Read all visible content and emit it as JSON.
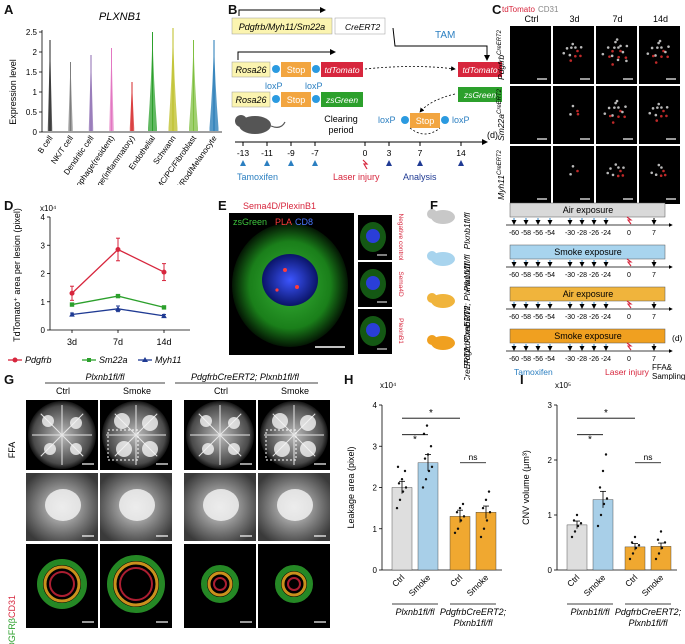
{
  "panels": {
    "A": {
      "letter": "A",
      "gene": "PLXNB1",
      "ylabel": "Expression level",
      "yticks": [
        "0",
        "0.5",
        "1",
        "1.5",
        "2",
        "2.5"
      ],
      "cell_types": [
        "B cell",
        "NK/T cell",
        "Dendritic cell",
        "Macrophage(resident)",
        "Macrophage(inflammatory)",
        "Endothelial",
        "Schwann",
        "SMC/PC/Fibroblast",
        "RPE/Rod/Melanocyte"
      ],
      "violin_colors": [
        "#222222",
        "#7d7d7d",
        "#8c6bb1",
        "#e377c2",
        "#d62728",
        "#2ca02c",
        "#bcbd22",
        "#7fbf3f",
        "#1f77b4"
      ]
    },
    "B": {
      "letter": "B",
      "promoters": "Pdgfrb/Myh11/Sm22a",
      "cre": "CreERT2",
      "tam": "TAM",
      "rosa1": "Rosa26",
      "rosa2": "Rosa26",
      "stop1": "Stop",
      "stop2": "Stop",
      "stop3": "Stop",
      "reporter1": "tdTomato",
      "reporter2": "zsGreen",
      "loxp_a": "loxP",
      "loxp_b": "loxP",
      "loxp_c": "loxP",
      "loxp_d": "loxP",
      "out_red": "tdTomato",
      "out_green": "zsGreen",
      "clearing": "Clearing",
      "period": "period",
      "timeline_ticks": [
        "-13",
        "-11",
        "-9",
        "-7",
        "0",
        "3",
        "7",
        "14"
      ],
      "unit": "(d)",
      "tamoxifen": "Tamoxifen",
      "laser": "Laser injury",
      "analysis": "Analysis"
    },
    "C": {
      "letter": "C",
      "label_red": "tdTomato",
      "label_white": "CD31",
      "cols": [
        "Ctrl",
        "3d",
        "7d",
        "14d"
      ],
      "rows": [
        "Pdgfrb",
        "Sm22a",
        "Myh11"
      ],
      "cre_suffix": "CreERT2"
    },
    "D": {
      "letter": "D",
      "ylabel": "TdTomato⁺ area per lesion (pixel)",
      "multiplier": "x10⁴",
      "legend_names": [
        "Pdgfrb",
        "Sm22a",
        "Myh11"
      ]
    },
    "E": {
      "letter": "E",
      "title": "Sema4D/PlexinB1",
      "zsgreen": "zsGreen",
      "pla": "PLA",
      "cd8": "CD8",
      "side_labels": [
        "Negative control",
        "Sema4D",
        "PlexinB1"
      ]
    },
    "F": {
      "letter": "F",
      "rows": [
        {
          "bar": "Air exposure",
          "genotype": "Plxnb1fl/fl"
        },
        {
          "bar": "Smoke exposure",
          "genotype": "Plxnb1fl/fl"
        },
        {
          "bar": "Air exposure",
          "genotype": "PdgfrbCreERT2; Plxnb1fl/fl"
        },
        {
          "bar": "Smoke exposure",
          "genotype": "PdgfrbCreERT2; Plxnb1fl/fl"
        }
      ],
      "ticks": [
        "-60",
        "-58",
        "-56",
        "-54",
        "-30",
        "-28",
        "-26",
        "-24",
        "0",
        "7"
      ],
      "unit": "(d)",
      "tamoxifen": "Tamoxifen",
      "laser": "Laser injury",
      "sampling": "FFA& Sampling"
    },
    "G": {
      "letter": "G",
      "group1": "Plxnb1fl/fl",
      "group2": "PdgfrbCreERT2; Plxnb1fl/fl",
      "cols": [
        "Ctrl",
        "Smoke",
        "Ctrl",
        "Smoke"
      ],
      "row_ffa": "FFA",
      "row_stain_green": "PDGFRβ",
      "row_stain_red": "CD31"
    },
    "H": {
      "letter": "H",
      "ylabel": "Leakage area (pixel)",
      "multiplier": "x10⁴",
      "yticks": [
        "0",
        "1",
        "2",
        "3",
        "4"
      ],
      "sig": [
        "*",
        "*",
        "ns"
      ],
      "xcats": [
        "Ctrl",
        "Smoke",
        "Ctrl",
        "Smoke"
      ],
      "group1": "Plxnb1fl/fl",
      "group2": "PdgfrbCreERT2; Plxnb1fl/fl"
    },
    "I": {
      "letter": "I",
      "ylabel": "CNV volume (μm³)",
      "multiplier": "x10⁵",
      "yticks": [
        "0",
        "1",
        "2",
        "3"
      ],
      "sig": [
        "*",
        "*",
        "ns"
      ],
      "xcats": [
        "Ctrl",
        "Smoke",
        "Ctrl",
        "Smoke"
      ],
      "group1": "Plxnb1fl/fl",
      "group2": "PdgfrbCreERT2; Plxnb1fl/fl"
    }
  },
  "chart_data": [
    {
      "panel": "D",
      "type": "line",
      "categories": [
        "3d",
        "7d",
        "14d"
      ],
      "ylim": [
        0,
        4
      ],
      "yticks": [
        0,
        1,
        2,
        3,
        4
      ],
      "series": [
        {
          "name": "Pdgfrb",
          "values": [
            1.3,
            2.85,
            2.05
          ],
          "err": [
            0.25,
            0.4,
            0.3
          ],
          "color": "#d7263d"
        },
        {
          "name": "Sm22a",
          "values": [
            0.9,
            1.2,
            0.8
          ],
          "err": [
            0.05,
            0.05,
            0.05
          ],
          "color": "#2ca02c"
        },
        {
          "name": "Myh11",
          "values": [
            0.55,
            0.75,
            0.5
          ],
          "err": [
            0.05,
            0.1,
            0.05
          ],
          "color": "#1f3a93"
        }
      ]
    },
    {
      "panel": "H",
      "type": "bar",
      "categories": [
        "Ctrl",
        "Smoke",
        "Ctrl",
        "Smoke"
      ],
      "values": [
        2.0,
        2.6,
        1.3,
        1.4
      ],
      "err": [
        0.15,
        0.2,
        0.15,
        0.15
      ],
      "colors": [
        "#dedede",
        "#a8cfe8",
        "#f0a830",
        "#f0a830"
      ],
      "ylim": [
        0,
        4
      ],
      "points": [
        [
          1.5,
          1.7,
          1.9,
          2.0,
          2.1,
          2.2,
          2.4,
          2.5
        ],
        [
          2.0,
          2.2,
          2.4,
          2.5,
          2.7,
          2.8,
          3.0,
          3.3,
          3.5
        ],
        [
          0.9,
          1.0,
          1.2,
          1.3,
          1.4,
          1.5,
          1.6
        ],
        [
          0.8,
          1.0,
          1.2,
          1.4,
          1.5,
          1.7,
          1.9
        ]
      ]
    },
    {
      "panel": "I",
      "type": "bar",
      "categories": [
        "Ctrl",
        "Smoke",
        "Ctrl",
        "Smoke"
      ],
      "values": [
        0.82,
        1.28,
        0.42,
        0.43
      ],
      "err": [
        0.07,
        0.15,
        0.06,
        0.06
      ],
      "colors": [
        "#dedede",
        "#a8cfe8",
        "#f0a830",
        "#f0a830"
      ],
      "ylim": [
        0,
        3
      ],
      "points": [
        [
          0.6,
          0.7,
          0.8,
          0.85,
          0.9,
          1.0
        ],
        [
          0.8,
          1.0,
          1.2,
          1.3,
          1.5,
          1.8,
          2.1
        ],
        [
          0.2,
          0.3,
          0.4,
          0.45,
          0.5,
          0.6
        ],
        [
          0.2,
          0.3,
          0.4,
          0.5,
          0.55,
          0.7
        ]
      ]
    }
  ]
}
